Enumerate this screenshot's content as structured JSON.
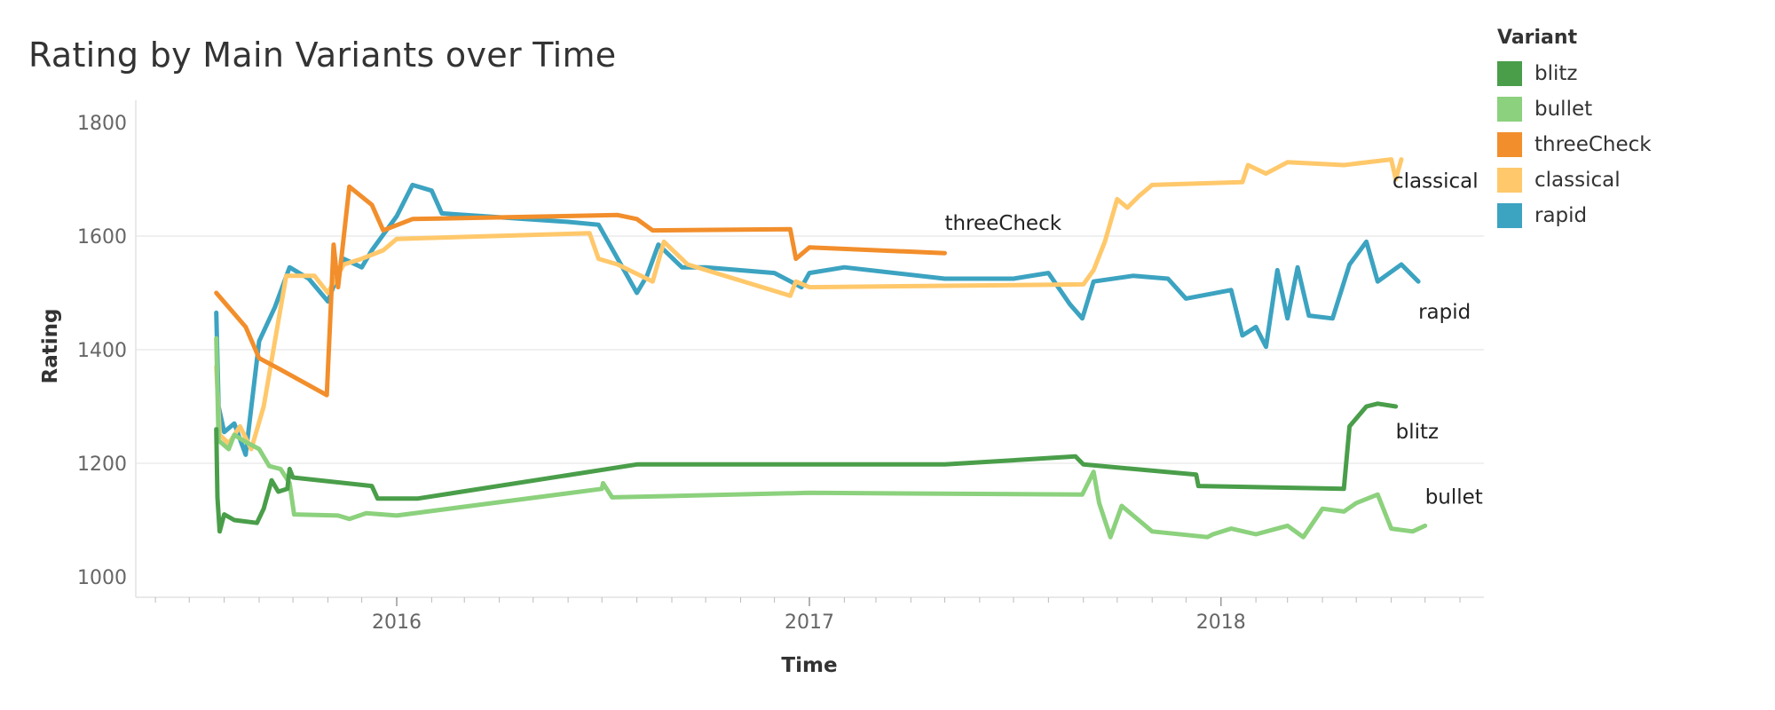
{
  "chart_data": {
    "type": "line",
    "title": "Rating by Main Variants over Time",
    "xlabel": "Time",
    "ylabel": "Rating",
    "xlim": [
      "2015-06-01",
      "2018-08-20"
    ],
    "ylim": [
      985,
      1840
    ],
    "yticks": [
      1000,
      1200,
      1400,
      1600,
      1800
    ],
    "xticks": [
      "2016-01-01",
      "2017-01-01",
      "2018-01-01"
    ],
    "xtick_labels": [
      "2016",
      "2017",
      "2018"
    ],
    "grid": "horizontal",
    "legend_title": "Variant",
    "legend_position": "top-right",
    "series": [
      {
        "name": "blitz",
        "color": "#4a9e4a",
        "points": [
          [
            "2015-07-25",
            1260
          ],
          [
            "2015-07-26",
            1140
          ],
          [
            "2015-07-28",
            1080
          ],
          [
            "2015-08-01",
            1110
          ],
          [
            "2015-08-10",
            1100
          ],
          [
            "2015-08-30",
            1095
          ],
          [
            "2015-09-05",
            1120
          ],
          [
            "2015-09-12",
            1170
          ],
          [
            "2015-09-18",
            1150
          ],
          [
            "2015-09-26",
            1155
          ],
          [
            "2015-09-28",
            1190
          ],
          [
            "2015-10-01",
            1175
          ],
          [
            "2015-12-10",
            1160
          ],
          [
            "2015-12-15",
            1138
          ],
          [
            "2016-01-20",
            1138
          ],
          [
            "2016-08-01",
            1198
          ],
          [
            "2017-05-01",
            1198
          ],
          [
            "2017-08-25",
            1212
          ],
          [
            "2017-09-01",
            1198
          ],
          [
            "2017-12-10",
            1180
          ],
          [
            "2017-12-12",
            1160
          ],
          [
            "2018-04-20",
            1155
          ],
          [
            "2018-04-25",
            1265
          ],
          [
            "2018-05-10",
            1300
          ],
          [
            "2018-05-20",
            1305
          ],
          [
            "2018-06-05",
            1300
          ]
        ]
      },
      {
        "name": "bullet",
        "color": "#8cd17d",
        "points": [
          [
            "2015-07-25",
            1420
          ],
          [
            "2015-07-27",
            1240
          ],
          [
            "2015-08-05",
            1225
          ],
          [
            "2015-08-10",
            1250
          ],
          [
            "2015-08-18",
            1240
          ],
          [
            "2015-09-01",
            1225
          ],
          [
            "2015-09-10",
            1195
          ],
          [
            "2015-09-20",
            1190
          ],
          [
            "2015-09-28",
            1165
          ],
          [
            "2015-10-02",
            1110
          ],
          [
            "2015-11-10",
            1108
          ],
          [
            "2015-11-20",
            1102
          ],
          [
            "2015-12-05",
            1112
          ],
          [
            "2016-01-01",
            1108
          ],
          [
            "2016-07-01",
            1155
          ],
          [
            "2016-07-02",
            1165
          ],
          [
            "2016-07-10",
            1140
          ],
          [
            "2017-01-01",
            1148
          ],
          [
            "2017-08-31",
            1145
          ],
          [
            "2017-09-10",
            1185
          ],
          [
            "2017-09-15",
            1130
          ],
          [
            "2017-09-25",
            1070
          ],
          [
            "2017-10-05",
            1125
          ],
          [
            "2017-11-01",
            1080
          ],
          [
            "2017-12-20",
            1070
          ],
          [
            "2017-12-25",
            1075
          ],
          [
            "2018-01-10",
            1085
          ],
          [
            "2018-02-01",
            1075
          ],
          [
            "2018-03-01",
            1090
          ],
          [
            "2018-03-15",
            1070
          ],
          [
            "2018-04-01",
            1120
          ],
          [
            "2018-04-20",
            1115
          ],
          [
            "2018-05-01",
            1130
          ],
          [
            "2018-05-20",
            1145
          ],
          [
            "2018-06-01",
            1085
          ],
          [
            "2018-06-20",
            1080
          ],
          [
            "2018-07-01",
            1090
          ]
        ]
      },
      {
        "name": "threeCheck",
        "color": "#f28e2b",
        "points": [
          [
            "2015-07-25",
            1500
          ],
          [
            "2015-08-20",
            1440
          ],
          [
            "2015-09-01",
            1385
          ],
          [
            "2015-09-20",
            1365
          ],
          [
            "2015-10-31",
            1320
          ],
          [
            "2015-11-06",
            1585
          ],
          [
            "2015-11-10",
            1510
          ],
          [
            "2015-11-14",
            1580
          ],
          [
            "2015-11-20",
            1687
          ],
          [
            "2015-12-10",
            1655
          ],
          [
            "2015-12-20",
            1610
          ],
          [
            "2016-01-15",
            1630
          ],
          [
            "2016-07-15",
            1637
          ],
          [
            "2016-08-01",
            1630
          ],
          [
            "2016-08-15",
            1610
          ],
          [
            "2016-12-15",
            1612
          ],
          [
            "2016-12-20",
            1560
          ],
          [
            "2017-01-01",
            1580
          ],
          [
            "2017-05-01",
            1570
          ]
        ]
      },
      {
        "name": "classical",
        "color": "#ffc86b",
        "points": [
          [
            "2015-07-25",
            1370
          ],
          [
            "2015-07-28",
            1250
          ],
          [
            "2015-08-05",
            1235
          ],
          [
            "2015-08-15",
            1265
          ],
          [
            "2015-08-25",
            1225
          ],
          [
            "2015-09-05",
            1300
          ],
          [
            "2015-09-18",
            1450
          ],
          [
            "2015-09-25",
            1530
          ],
          [
            "2015-10-20",
            1530
          ],
          [
            "2015-11-01",
            1500
          ],
          [
            "2015-11-15",
            1550
          ],
          [
            "2015-12-01",
            1560
          ],
          [
            "2015-12-20",
            1575
          ],
          [
            "2016-01-01",
            1595
          ],
          [
            "2016-06-20",
            1605
          ],
          [
            "2016-06-28",
            1560
          ],
          [
            "2016-07-15",
            1550
          ],
          [
            "2016-08-15",
            1520
          ],
          [
            "2016-08-25",
            1590
          ],
          [
            "2016-09-15",
            1550
          ],
          [
            "2016-12-15",
            1495
          ],
          [
            "2016-12-20",
            1520
          ],
          [
            "2017-01-01",
            1510
          ],
          [
            "2017-09-01",
            1515
          ],
          [
            "2017-09-10",
            1540
          ],
          [
            "2017-09-20",
            1590
          ],
          [
            "2017-10-01",
            1665
          ],
          [
            "2017-10-10",
            1650
          ],
          [
            "2017-10-20",
            1670
          ],
          [
            "2017-11-01",
            1690
          ],
          [
            "2018-01-20",
            1695
          ],
          [
            "2018-01-25",
            1725
          ],
          [
            "2018-02-10",
            1710
          ],
          [
            "2018-03-01",
            1730
          ],
          [
            "2018-04-20",
            1725
          ],
          [
            "2018-06-01",
            1735
          ],
          [
            "2018-06-05",
            1700
          ],
          [
            "2018-06-10",
            1735
          ]
        ]
      },
      {
        "name": "rapid",
        "color": "#3ca3c1",
        "points": [
          [
            "2015-07-25",
            1465
          ],
          [
            "2015-07-27",
            1300
          ],
          [
            "2015-08-01",
            1255
          ],
          [
            "2015-08-10",
            1270
          ],
          [
            "2015-08-20",
            1215
          ],
          [
            "2015-09-01",
            1415
          ],
          [
            "2015-09-15",
            1475
          ],
          [
            "2015-09-28",
            1545
          ],
          [
            "2015-10-15",
            1525
          ],
          [
            "2015-11-01",
            1485
          ],
          [
            "2015-11-15",
            1560
          ],
          [
            "2015-12-01",
            1545
          ],
          [
            "2015-12-10",
            1575
          ],
          [
            "2016-01-01",
            1635
          ],
          [
            "2016-01-15",
            1690
          ],
          [
            "2016-02-01",
            1680
          ],
          [
            "2016-02-10",
            1640
          ],
          [
            "2016-06-01",
            1625
          ],
          [
            "2016-06-28",
            1620
          ],
          [
            "2016-07-15",
            1560
          ],
          [
            "2016-08-01",
            1500
          ],
          [
            "2016-08-10",
            1530
          ],
          [
            "2016-08-20",
            1585
          ],
          [
            "2016-09-10",
            1545
          ],
          [
            "2016-10-01",
            1545
          ],
          [
            "2016-12-01",
            1535
          ],
          [
            "2016-12-25",
            1510
          ],
          [
            "2017-01-01",
            1535
          ],
          [
            "2017-02-01",
            1545
          ],
          [
            "2017-05-01",
            1525
          ],
          [
            "2017-07-01",
            1525
          ],
          [
            "2017-08-01",
            1535
          ],
          [
            "2017-08-20",
            1480
          ],
          [
            "2017-08-31",
            1455
          ],
          [
            "2017-09-10",
            1520
          ],
          [
            "2017-10-15",
            1530
          ],
          [
            "2017-11-15",
            1525
          ],
          [
            "2017-12-01",
            1490
          ],
          [
            "2018-01-10",
            1505
          ],
          [
            "2018-01-20",
            1425
          ],
          [
            "2018-02-01",
            1440
          ],
          [
            "2018-02-10",
            1405
          ],
          [
            "2018-02-20",
            1540
          ],
          [
            "2018-03-01",
            1455
          ],
          [
            "2018-03-10",
            1545
          ],
          [
            "2018-03-20",
            1460
          ],
          [
            "2018-04-10",
            1455
          ],
          [
            "2018-04-25",
            1550
          ],
          [
            "2018-05-10",
            1590
          ],
          [
            "2018-05-20",
            1520
          ],
          [
            "2018-06-10",
            1550
          ],
          [
            "2018-06-25",
            1520
          ]
        ]
      }
    ],
    "end_labels": [
      {
        "text": "threeCheck",
        "series": "threeCheck"
      },
      {
        "text": "classical",
        "series": "classical"
      },
      {
        "text": "rapid",
        "series": "rapid"
      },
      {
        "text": "blitz",
        "series": "blitz"
      },
      {
        "text": "bullet",
        "series": "bullet"
      }
    ]
  }
}
